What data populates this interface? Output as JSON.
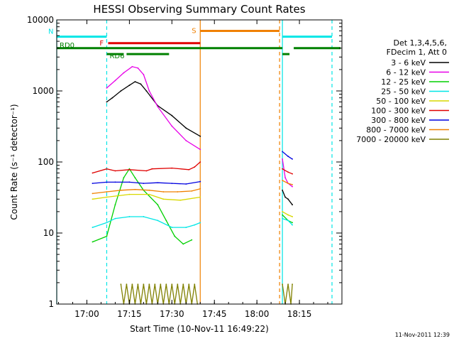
{
  "chart_data": {
    "type": "line",
    "title": "HESSI Observing Summary Count Rates",
    "xlabel": "Start Time (10-Nov-11 16:49:22)",
    "ylabel": "Count Rate (s⁻¹ detector⁻¹)",
    "yscale": "log",
    "ylim": [
      1,
      10000
    ],
    "xlim": [
      "16:49:22",
      "18:30:00"
    ],
    "x_ticks": [
      "17:00",
      "17:15",
      "17:30",
      "17:45",
      "18:00",
      "18:15"
    ],
    "y_ticks": [
      "1",
      "10",
      "100",
      "1000",
      "10000"
    ],
    "timestamp": "11-Nov-2011 12:39",
    "legend": {
      "position": "right",
      "header": [
        "Det 1,3,4,5,6,",
        "FDecim 1, Att 0"
      ],
      "entries": [
        {
          "label": "3 - 6 keV",
          "color": "#000000"
        },
        {
          "label": "6 - 12 keV",
          "color": "#e800e8"
        },
        {
          "label": "12 - 25 keV",
          "color": "#00d000"
        },
        {
          "label": "25 - 50 keV",
          "color": "#00e6e6"
        },
        {
          "label": "50 - 100 keV",
          "color": "#d8d800"
        },
        {
          "label": "100 - 300 keV",
          "color": "#e00000"
        },
        {
          "label": "300 - 800 keV",
          "color": "#0000e0"
        },
        {
          "label": "800 - 7000 keV",
          "color": "#f08000"
        },
        {
          "label": "7000 - 20000 keV",
          "color": "#808000"
        }
      ]
    },
    "flags": [
      {
        "label": "N",
        "color": "#00e6e6",
        "y": 5800,
        "segments": [
          [
            "16:49:22",
            "17:07:00"
          ],
          [
            "18:09:00",
            "18:26:30"
          ]
        ]
      },
      {
        "label": "F",
        "color": "#e00000",
        "y": 4700,
        "segments": [
          [
            "17:07:30",
            "17:40:00"
          ]
        ]
      },
      {
        "label": "S",
        "color": "#f08000",
        "y": 7000,
        "segments": [
          [
            "17:40:00",
            "18:08:00"
          ]
        ]
      },
      {
        "label": "RD0",
        "color": "#008000",
        "y": 4000,
        "segments": [
          [
            "16:49:22",
            "18:09:00"
          ],
          [
            "18:13:00",
            "18:29:30"
          ]
        ]
      },
      {
        "label": "RD6",
        "color": "#008000",
        "y": 3300,
        "segments": [
          [
            "17:07:00",
            "17:13:00"
          ],
          [
            "17:14:00",
            "17:29:00"
          ],
          [
            "18:09:00",
            "18:11:30"
          ]
        ]
      }
    ],
    "markers": [
      {
        "color": "#00e6e6",
        "style": "solid",
        "x": "16:49:22"
      },
      {
        "color": "#00e6e6",
        "style": "dashed",
        "x": "17:07:00"
      },
      {
        "color": "#f08000",
        "style": "solid",
        "x": "17:40:00"
      },
      {
        "color": "#f08000",
        "style": "dashed",
        "x": "18:08:00"
      },
      {
        "color": "#00e6e6",
        "style": "solid",
        "x": "18:09:00"
      },
      {
        "color": "#00e6e6",
        "style": "dashed",
        "x": "18:26:30"
      }
    ],
    "series": [
      {
        "name": "3 - 6 keV",
        "color": "#000000",
        "segments": [
          {
            "x": [
              "17:07:00",
              "17:09:00",
              "17:12:00",
              "17:15:00",
              "17:17:00",
              "17:19:00",
              "17:21:00",
              "17:25:00",
              "17:30:00",
              "17:35:00",
              "17:40:00"
            ],
            "y": [
              700,
              800,
              1000,
              1200,
              1350,
              1250,
              1000,
              620,
              450,
              300,
              230
            ]
          },
          {
            "x": [
              "18:09:00",
              "18:10:00",
              "18:11:00",
              "18:12:30"
            ],
            "y": [
              40,
              32,
              30,
              25
            ]
          }
        ]
      },
      {
        "name": "6 - 12 keV",
        "color": "#e800e8",
        "segments": [
          {
            "x": [
              "17:07:00",
              "17:10:00",
              "17:13:00",
              "17:16:00",
              "17:18:00",
              "17:20:00",
              "17:22:00",
              "17:25:00",
              "17:30:00",
              "17:35:00",
              "17:40:00"
            ],
            "y": [
              1100,
              1400,
              1800,
              2200,
              2100,
              1700,
              1000,
              600,
              320,
              200,
              150
            ]
          },
          {
            "x": [
              "18:09:00",
              "18:10:00",
              "18:11:00",
              "18:12:30"
            ],
            "y": [
              110,
              60,
              50,
              45
            ]
          }
        ]
      },
      {
        "name": "12 - 25 keV",
        "color": "#00d000",
        "segments": [
          {
            "x": [
              "17:02:00",
              "17:07:00",
              "17:10:00",
              "17:13:00",
              "17:15:00",
              "17:17:00",
              "17:20:00",
              "17:25:00",
              "17:28:00",
              "17:31:00",
              "17:34:00",
              "17:37:00"
            ],
            "y": [
              7.5,
              9,
              25,
              60,
              80,
              60,
              40,
              25,
              15,
              9,
              7,
              8
            ]
          },
          {
            "x": [
              "18:09:00",
              "18:11:00",
              "18:12:30"
            ],
            "y": [
              18,
              15,
              14
            ]
          }
        ]
      },
      {
        "name": "25 - 50 keV",
        "color": "#00e6e6",
        "segments": [
          {
            "x": [
              "17:02:00",
              "17:07:00",
              "17:10:00",
              "17:15:00",
              "17:20:00",
              "17:25:00",
              "17:30:00",
              "17:35:00",
              "17:38:00",
              "17:40:00"
            ],
            "y": [
              12,
              14,
              16,
              17,
              17,
              15,
              12,
              12,
              13,
              14
            ]
          },
          {
            "x": [
              "18:09:00",
              "18:11:00",
              "18:12:30"
            ],
            "y": [
              16,
              15,
              13
            ]
          }
        ]
      },
      {
        "name": "50 - 100 keV",
        "color": "#d8d800",
        "segments": [
          {
            "x": [
              "17:02:00",
              "17:07:00",
              "17:15:00",
              "17:22:00",
              "17:27:00",
              "17:33:00",
              "17:40:00"
            ],
            "y": [
              30,
              32,
              35,
              35,
              30,
              29,
              32
            ]
          },
          {
            "x": [
              "18:09:00",
              "18:11:00",
              "18:12:30"
            ],
            "y": [
              20,
              18,
              17
            ]
          }
        ]
      },
      {
        "name": "100 - 300 keV",
        "color": "#e00000",
        "segments": [
          {
            "x": [
              "17:02:00",
              "17:07:00",
              "17:10:00",
              "17:15:00",
              "17:21:00",
              "17:23:00",
              "17:30:00",
              "17:36:00",
              "17:38:00",
              "17:40:00"
            ],
            "y": [
              70,
              80,
              75,
              78,
              75,
              80,
              82,
              78,
              85,
              100
            ]
          },
          {
            "x": [
              "18:09:00",
              "18:11:00",
              "18:12:30"
            ],
            "y": [
              80,
              72,
              68
            ]
          }
        ]
      },
      {
        "name": "300 - 800 keV",
        "color": "#0000e0",
        "segments": [
          {
            "x": [
              "17:02:00",
              "17:07:00",
              "17:10:00",
              "17:15:00",
              "17:20:00",
              "17:25:00",
              "17:30:00",
              "17:35:00",
              "17:40:00"
            ],
            "y": [
              50,
              52,
              52,
              52,
              50,
              51,
              50,
              49,
              53
            ]
          },
          {
            "x": [
              "18:09:00",
              "18:11:00",
              "18:12:30"
            ],
            "y": [
              140,
              120,
              110
            ]
          }
        ]
      },
      {
        "name": "800 - 7000 keV",
        "color": "#f08000",
        "segments": [
          {
            "x": [
              "17:02:00",
              "17:07:00",
              "17:12:00",
              "17:17:00",
              "17:22:00",
              "17:27:00",
              "17:32:00",
              "17:37:00",
              "17:40:00"
            ],
            "y": [
              36,
              38,
              40,
              41,
              40,
              38,
              38,
              39,
              42
            ]
          },
          {
            "x": [
              "18:09:00",
              "18:11:00",
              "18:12:30"
            ],
            "y": [
              55,
              50,
              48
            ]
          }
        ]
      },
      {
        "name": "7000 - 20000 keV",
        "color": "#808000",
        "segments": [
          {
            "x": [
              "17:12:00",
              "17:13:00",
              "17:14:00",
              "17:15:00",
              "17:16:00",
              "17:17:00",
              "17:18:00",
              "17:19:00",
              "17:20:00",
              "17:21:00",
              "17:22:00",
              "17:23:00",
              "17:24:00",
              "17:25:00",
              "17:26:00",
              "17:27:00",
              "17:28:00",
              "17:29:00",
              "17:30:00",
              "17:31:00",
              "17:32:00",
              "17:33:00",
              "17:34:00",
              "17:35:00",
              "17:36:00",
              "17:37:00",
              "17:38:00",
              "17:39:00"
            ],
            "y": [
              1.9,
              1.0,
              1.9,
              1.0,
              1.9,
              1.0,
              1.9,
              1.0,
              1.9,
              1.0,
              1.9,
              1.0,
              1.9,
              1.0,
              1.9,
              1.0,
              1.9,
              1.0,
              1.9,
              1.0,
              1.9,
              1.0,
              1.9,
              1.0,
              1.9,
              1.0,
              1.9,
              1.0
            ]
          },
          {
            "x": [
              "18:09:00",
              "18:10:00",
              "18:11:00",
              "18:12:00",
              "18:12:30"
            ],
            "y": [
              1.9,
              1.0,
              1.9,
              1.0,
              1.9
            ]
          }
        ]
      }
    ]
  }
}
